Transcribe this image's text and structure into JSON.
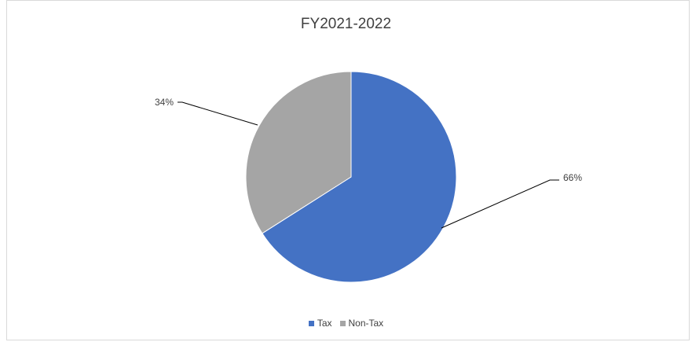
{
  "chart_data": {
    "type": "pie",
    "title": "FY2021-2022",
    "categories": [
      "Tax",
      "Non-Tax"
    ],
    "values": [
      66,
      34
    ],
    "labels": [
      "66%",
      "34%"
    ],
    "colors": [
      "#4472c4",
      "#a5a5a5"
    ],
    "legend_position": "bottom",
    "start_angle_deg": 0,
    "direction": "clockwise"
  }
}
